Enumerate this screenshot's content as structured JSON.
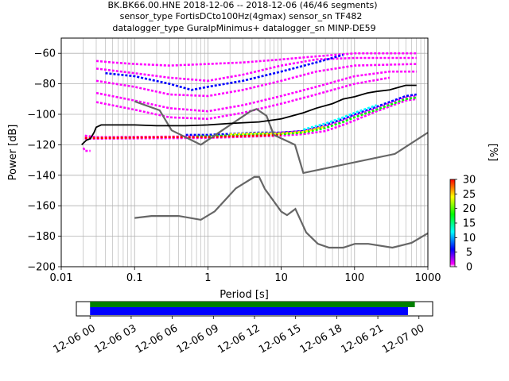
{
  "title_lines": [
    "BK.BK66.00.HNE   2018-12-06 -- 2018-12-06  (46/46 segments)",
    "sensor_type FortisDCto100Hz(4gmax) sensor_sn TF482",
    "datalogger_type GuralpMinimus+ datalogger_sn MINP-DE59"
  ],
  "chart_data": [
    {
      "type": "heatmap",
      "xlabel": "Period [s]",
      "ylabel": "Power [dB]",
      "x_scale": "log",
      "xlim": [
        0.01,
        1000
      ],
      "ylim": [
        -200,
        -50
      ],
      "grid": true,
      "x_ticks": [
        {
          "value": 0.01,
          "label": "0.01"
        },
        {
          "value": 0.1,
          "label": "0.1"
        },
        {
          "value": 1,
          "label": "1"
        },
        {
          "value": 10,
          "label": "10"
        },
        {
          "value": 100,
          "label": "100"
        },
        {
          "value": 1000,
          "label": "1000"
        }
      ],
      "y_ticks": [
        {
          "value": -60,
          "label": "−60"
        },
        {
          "value": -80,
          "label": "−80"
        },
        {
          "value": -100,
          "label": "−100"
        },
        {
          "value": -120,
          "label": "−120"
        },
        {
          "value": -140,
          "label": "−140"
        },
        {
          "value": -160,
          "label": "−160"
        },
        {
          "value": -180,
          "label": "−180"
        },
        {
          "value": -200,
          "label": "−200"
        }
      ],
      "noise_models": {
        "color": "#666666",
        "nhnm": [
          [
            0.1,
            -91.5
          ],
          [
            0.22,
            -97.4
          ],
          [
            0.32,
            -110.5
          ],
          [
            0.8,
            -120
          ],
          [
            3.8,
            -98
          ],
          [
            4.6,
            -96.5
          ],
          [
            6.3,
            -101
          ],
          [
            7.9,
            -113.5
          ],
          [
            15.4,
            -120
          ],
          [
            20,
            -138.5
          ],
          [
            354.8,
            -126
          ],
          [
            1000,
            -112
          ]
        ],
        "nlnm": [
          [
            0.1,
            -168
          ],
          [
            0.17,
            -166.7
          ],
          [
            0.4,
            -166.7
          ],
          [
            0.8,
            -169.2
          ],
          [
            1.24,
            -163.7
          ],
          [
            2.4,
            -148.6
          ],
          [
            4.3,
            -141.1
          ],
          [
            5,
            -141.1
          ],
          [
            6,
            -149
          ],
          [
            10,
            -163.8
          ],
          [
            12,
            -166.2
          ],
          [
            15.6,
            -162.1
          ],
          [
            21.9,
            -177.5
          ],
          [
            31.6,
            -185
          ],
          [
            45,
            -187.5
          ],
          [
            70,
            -187.5
          ],
          [
            101,
            -185
          ],
          [
            154,
            -185
          ],
          [
            328,
            -187.5
          ],
          [
            600,
            -184.4
          ],
          [
            1000,
            -178
          ]
        ]
      },
      "mean_curve": {
        "color": "#000000",
        "points": [
          [
            0.019,
            -120
          ],
          [
            0.022,
            -117
          ],
          [
            0.025,
            -116
          ],
          [
            0.028,
            -112
          ],
          [
            0.03,
            -108.5
          ],
          [
            0.035,
            -107
          ],
          [
            0.05,
            -107
          ],
          [
            0.1,
            -107
          ],
          [
            0.2,
            -107.5
          ],
          [
            0.5,
            -107.5
          ],
          [
            1,
            -107
          ],
          [
            2,
            -106
          ],
          [
            5,
            -105
          ],
          [
            10,
            -103
          ],
          [
            20,
            -99
          ],
          [
            30,
            -96
          ],
          [
            50,
            -93
          ],
          [
            70,
            -90
          ],
          [
            100,
            -88.5
          ],
          [
            150,
            -86
          ],
          [
            200,
            -85
          ],
          [
            300,
            -84
          ],
          [
            500,
            -81
          ],
          [
            700,
            -81
          ]
        ]
      },
      "density_bands": [
        {
          "color": "#ff00ff",
          "points": [
            [
              0.021,
              -114
            ],
            [
              0.03,
              -115
            ],
            [
              1,
              -114.5
            ],
            [
              5,
              -113
            ],
            [
              10,
              -112
            ],
            [
              20,
              -111
            ],
            [
              40,
              -108
            ],
            [
              70,
              -104
            ],
            [
              100,
              -101
            ],
            [
              200,
              -96
            ],
            [
              500,
              -89
            ],
            [
              700,
              -88
            ]
          ]
        },
        {
          "color": "#ff00ff",
          "points": [
            [
              0.021,
              -116
            ],
            [
              0.03,
              -116
            ],
            [
              1,
              -115.5
            ],
            [
              5,
              -114.5
            ],
            [
              10,
              -114
            ],
            [
              20,
              -113
            ],
            [
              40,
              -111
            ],
            [
              70,
              -107
            ],
            [
              100,
              -104
            ],
            [
              200,
              -98
            ],
            [
              500,
              -91
            ],
            [
              700,
              -90
            ]
          ]
        },
        {
          "color": "#0000ff",
          "points": [
            [
              0.5,
              -113.5
            ],
            [
              1,
              -113.5
            ],
            [
              5,
              -112
            ],
            [
              10,
              -112
            ],
            [
              20,
              -111
            ],
            [
              40,
              -107
            ],
            [
              70,
              -103
            ],
            [
              100,
              -100
            ],
            [
              200,
              -95
            ],
            [
              500,
              -88
            ],
            [
              700,
              -87
            ]
          ]
        },
        {
          "color": "#00ff00",
          "points": [
            [
              0.7,
              -114.5
            ],
            [
              1,
              -114.5
            ],
            [
              5,
              -113
            ],
            [
              10,
              -113
            ],
            [
              20,
              -112
            ],
            [
              40,
              -109
            ],
            [
              70,
              -105
            ],
            [
              100,
              -102
            ],
            [
              200,
              -97
            ],
            [
              500,
              -90
            ],
            [
              700,
              -89
            ]
          ]
        },
        {
          "color": "#ff0000",
          "points": [
            [
              0.021,
              -115.5
            ],
            [
              0.03,
              -115.5
            ],
            [
              0.3,
              -115
            ],
            [
              1,
              -115
            ],
            [
              5,
              -114
            ],
            [
              10,
              -113.5
            ]
          ]
        },
        {
          "color": "#ffff00",
          "points": [
            [
              2,
              -113
            ],
            [
              5,
              -112.5
            ],
            [
              10,
              -112.5
            ],
            [
              20,
              -111.5
            ],
            [
              40,
              -108
            ]
          ]
        },
        {
          "color": "#00ffff",
          "points": [
            [
              20,
              -110
            ],
            [
              40,
              -106
            ],
            [
              70,
              -102
            ],
            [
              100,
              -99
            ],
            [
              200,
              -94
            ]
          ]
        },
        {
          "color": "#ff00ff",
          "points": [
            [
              0.02,
              -122
            ],
            [
              0.021,
              -124
            ],
            [
              0.025,
              -124
            ]
          ]
        },
        {
          "color": "#ff00ff",
          "points": [
            [
              0.03,
              -65
            ],
            [
              0.05,
              -66
            ],
            [
              0.1,
              -67
            ],
            [
              0.3,
              -68
            ],
            [
              1,
              -67
            ],
            [
              3,
              -66
            ],
            [
              10,
              -64
            ],
            [
              30,
              -62
            ],
            [
              100,
              -60
            ],
            [
              700,
              -60
            ]
          ]
        },
        {
          "color": "#ff00ff",
          "points": [
            [
              0.03,
              -70
            ],
            [
              0.1,
              -73
            ],
            [
              0.3,
              -76
            ],
            [
              1,
              -78
            ],
            [
              3,
              -74
            ],
            [
              10,
              -68
            ],
            [
              30,
              -64
            ],
            [
              100,
              -63
            ],
            [
              700,
              -63
            ]
          ]
        },
        {
          "color": "#0000ff",
          "points": [
            [
              0.04,
              -73
            ],
            [
              0.1,
              -75
            ],
            [
              0.3,
              -80
            ],
            [
              0.6,
              -84
            ],
            [
              1,
              -82
            ],
            [
              3,
              -78
            ],
            [
              10,
              -72
            ],
            [
              30,
              -66
            ],
            [
              70,
              -61
            ]
          ]
        },
        {
          "color": "#ff00ff",
          "points": [
            [
              0.03,
              -78
            ],
            [
              0.1,
              -82
            ],
            [
              0.3,
              -87
            ],
            [
              1,
              -88
            ],
            [
              3,
              -84
            ],
            [
              10,
              -78
            ],
            [
              30,
              -72
            ],
            [
              100,
              -68
            ],
            [
              700,
              -67
            ]
          ]
        },
        {
          "color": "#ff00ff",
          "points": [
            [
              0.03,
              -86
            ],
            [
              0.1,
              -91
            ],
            [
              0.3,
              -96
            ],
            [
              1,
              -98
            ],
            [
              3,
              -94
            ],
            [
              10,
              -88
            ],
            [
              30,
              -82
            ],
            [
              100,
              -75
            ],
            [
              300,
              -72
            ],
            [
              700,
              -72
            ]
          ]
        },
        {
          "color": "#ff00ff",
          "points": [
            [
              0.03,
              -92
            ],
            [
              0.1,
              -97
            ],
            [
              0.3,
              -102
            ],
            [
              1,
              -103
            ],
            [
              3,
              -99
            ],
            [
              10,
              -93
            ],
            [
              30,
              -87
            ],
            [
              100,
              -80
            ],
            [
              300,
              -76
            ]
          ]
        }
      ]
    },
    {
      "type": "heatmap",
      "colorbar_label": "[%]",
      "ticks": [
        0,
        5,
        10,
        15,
        20,
        25,
        30
      ],
      "vmin": 0,
      "vmax": 30,
      "colormap": [
        "#ffffff",
        "#ff00ff",
        "#0000ff",
        "#00ffff",
        "#00ff00",
        "#ffff00",
        "#ff0000"
      ]
    },
    {
      "type": "bar",
      "x_ticks": [
        "12-06 00",
        "12-06 03",
        "12-06 06",
        "12-06 09",
        "12-06 12",
        "12-06 15",
        "12-06 18",
        "12-06 21",
        "12-07 00"
      ],
      "x_range_hours": [
        -1,
        25
      ],
      "series": [
        {
          "color": "#008000",
          "start_hour": 0,
          "end_hour": 23.7
        },
        {
          "color": "#0000ff",
          "start_hour": 0,
          "end_hour": 23.2
        }
      ]
    }
  ]
}
